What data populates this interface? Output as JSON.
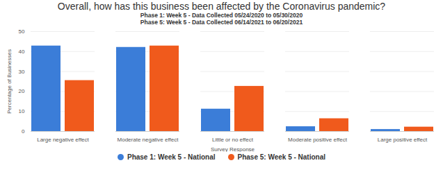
{
  "chart_data": {
    "type": "bar",
    "title": "Overall, how has this business been affected by the Coronavirus pandemic?",
    "subtitle": [
      "Phase 1: Week 5 - Data Collected 05/24/2020 to 05/30/2020",
      "Phase 5: Week 5 - Data Collected 06/14/2021 to 06/20/2021"
    ],
    "x_label": "Survey Response",
    "y_label": "Percentage of Businesses",
    "categories": [
      "Large negative effect",
      "Moderate negative effect",
      "Little or no effect",
      "Moderate positive effect",
      "Large positive effect"
    ],
    "series": [
      {
        "name": "Phase 1: Week 5 - National",
        "color": "#3b7dd8",
        "values": [
          42.8,
          42.1,
          11.2,
          2.4,
          1.0
        ]
      },
      {
        "name": "Phase 5: Week 5 - National",
        "color": "#f05a1c",
        "values": [
          25.5,
          42.8,
          22.6,
          6.4,
          2.2
        ]
      }
    ],
    "ylim": [
      0,
      50
    ],
    "yticks": [
      0,
      10,
      20,
      30,
      40,
      50
    ],
    "grid": true,
    "legend": "bottom"
  }
}
